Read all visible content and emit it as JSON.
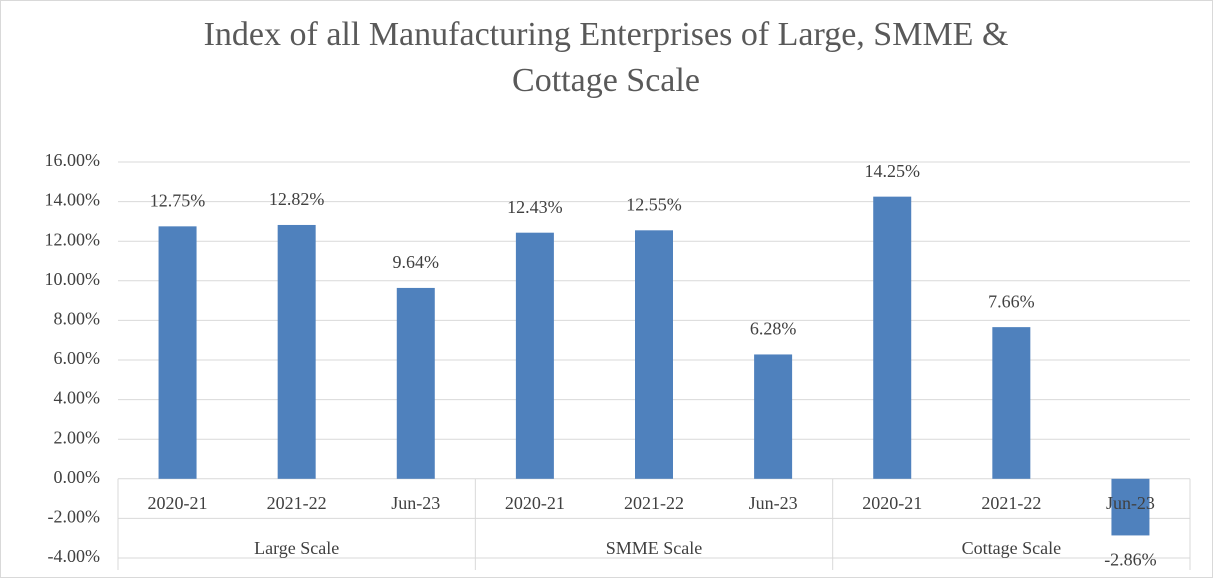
{
  "chart_data": {
    "type": "bar",
    "title": "Index of all Manufacturing Enterprises of Large, SMME & Cottage Scale",
    "categories": [
      "2020-21",
      "2021-22",
      "Jun-23",
      "2020-21",
      "2021-22",
      "Jun-23",
      "2020-21",
      "2021-22",
      "Jun-23"
    ],
    "category_groups": [
      "Large Scale",
      "SMME Scale",
      "Cottage Scale"
    ],
    "values": [
      12.75,
      12.82,
      9.64,
      12.43,
      12.55,
      6.28,
      14.25,
      7.66,
      -2.86
    ],
    "value_labels": [
      "12.75%",
      "12.82%",
      "9.64%",
      "12.43%",
      "12.55%",
      "6.28%",
      "14.25%",
      "7.66%",
      "-2.86%"
    ],
    "color": "#4f81bd",
    "ylim": [
      -4,
      16
    ],
    "yticks": [
      {
        "value": -4,
        "label": "-4.00%"
      },
      {
        "value": -2,
        "label": "-2.00%"
      },
      {
        "value": 0,
        "label": "0.00%"
      },
      {
        "value": 2,
        "label": "2.00%"
      },
      {
        "value": 4,
        "label": "4.00%"
      },
      {
        "value": 6,
        "label": "6.00%"
      },
      {
        "value": 8,
        "label": "8.00%"
      },
      {
        "value": 10,
        "label": "10.00%"
      },
      {
        "value": 12,
        "label": "12.00%"
      },
      {
        "value": 14,
        "label": "14.00%"
      },
      {
        "value": 16,
        "label": "16.00%"
      }
    ],
    "grid": true
  }
}
